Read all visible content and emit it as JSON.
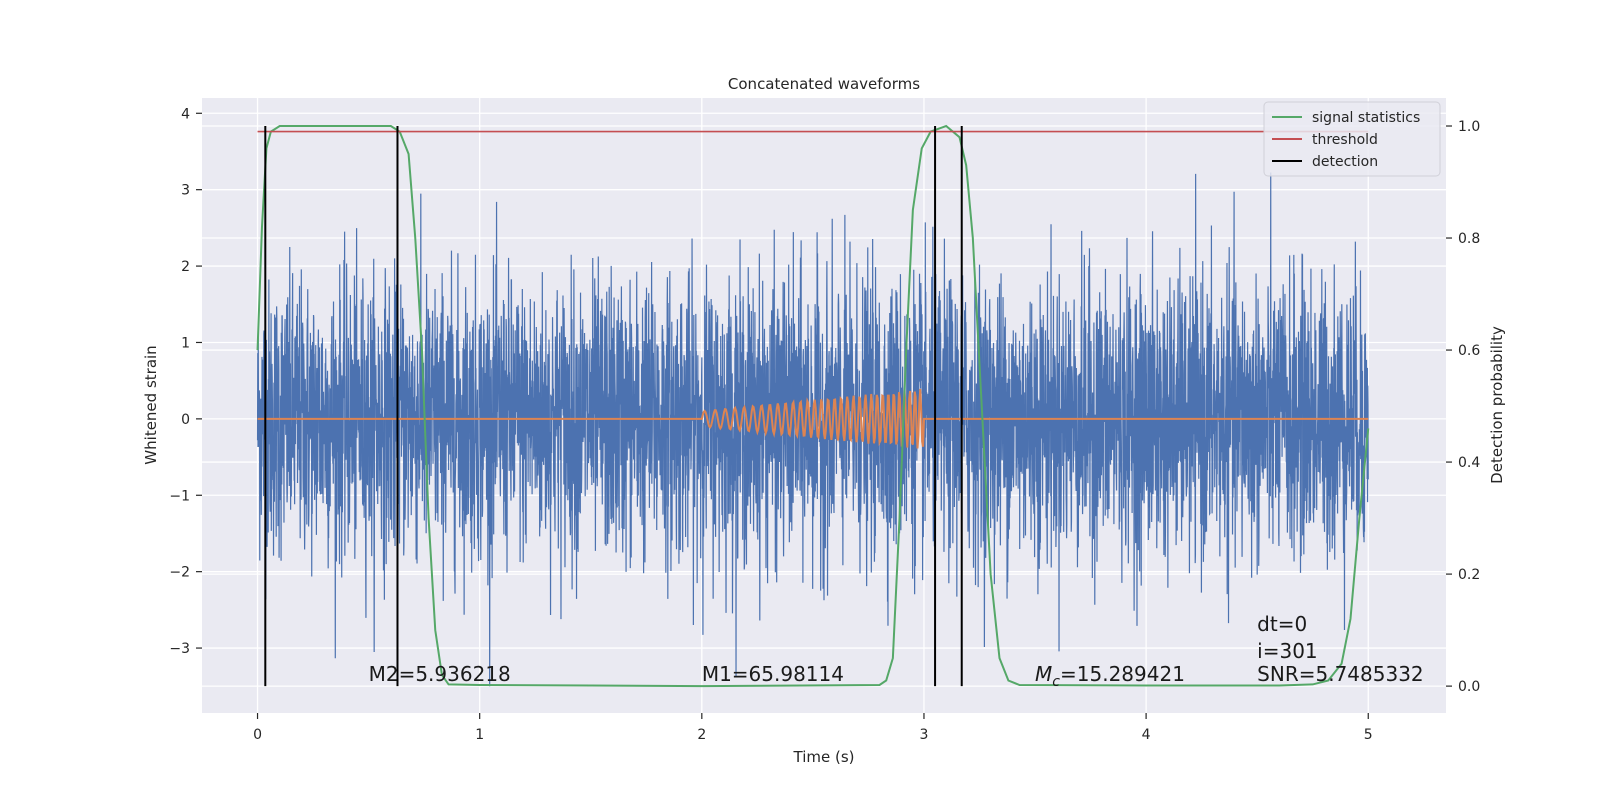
{
  "chart_data": {
    "type": "line",
    "title": "Concatenated waveforms",
    "xlabel": "Time (s)",
    "ylabel": "Whitened strain",
    "y2label": "Detection probability",
    "xlim": [
      -0.25,
      5.35
    ],
    "ylim": [
      -3.85,
      4.2
    ],
    "y2lim": [
      -0.048,
      1.05
    ],
    "xticks": [
      0,
      1,
      2,
      3,
      4,
      5
    ],
    "xtick_labels": [
      "0",
      "1",
      "2",
      "3",
      "4",
      "5"
    ],
    "yticks": [
      -3,
      -2,
      -1,
      0,
      1,
      2,
      3,
      4
    ],
    "ytick_labels": [
      "−3",
      "−2",
      "−1",
      "0",
      "1",
      "2",
      "3",
      "4"
    ],
    "y2ticks": [
      0.0,
      0.2,
      0.4,
      0.6,
      0.8,
      1.0
    ],
    "y2tick_labels": [
      "0.0",
      "0.2",
      "0.4",
      "0.6",
      "0.8",
      "1.0"
    ],
    "grid": true,
    "legend_placement": "top-right",
    "colors": {
      "plot_bg": "#eaeaf2",
      "grid": "#ffffff",
      "noise": "#4c72b0",
      "waveform": "#dd8452",
      "signal_statistics": "#55a868",
      "threshold": "#c44e52",
      "detection": "#000000"
    },
    "series": [
      {
        "name": "",
        "kind": "whitened strain noise",
        "x_range": [
          0,
          5
        ],
        "approx_std": 0.9,
        "approx_peak_range": [
          -3.5,
          3.85
        ]
      },
      {
        "name": "",
        "kind": "injected chirp waveform",
        "x_range": [
          2.0,
          3.0
        ],
        "amplitude_range": [
          0.1,
          0.4
        ]
      },
      {
        "name": "signal statistics",
        "axis": "right",
        "points": [
          [
            0,
            0.6
          ],
          [
            0.02,
            0.82
          ],
          [
            0.04,
            0.96
          ],
          [
            0.06,
            0.99
          ],
          [
            0.1,
            1.0
          ],
          [
            0.6,
            1.0
          ],
          [
            0.64,
            0.99
          ],
          [
            0.68,
            0.95
          ],
          [
            0.71,
            0.8
          ],
          [
            0.74,
            0.6
          ],
          [
            0.77,
            0.3
          ],
          [
            0.8,
            0.1
          ],
          [
            0.83,
            0.02
          ],
          [
            0.86,
            0.003
          ],
          [
            1.0,
            0.002
          ],
          [
            1.5,
            0.001
          ],
          [
            2.0,
            0.0
          ],
          [
            2.8,
            0.002
          ],
          [
            2.83,
            0.01
          ],
          [
            2.86,
            0.05
          ],
          [
            2.89,
            0.3
          ],
          [
            2.92,
            0.6
          ],
          [
            2.95,
            0.85
          ],
          [
            2.99,
            0.96
          ],
          [
            3.03,
            0.99
          ],
          [
            3.1,
            1.0
          ],
          [
            3.16,
            0.98
          ],
          [
            3.19,
            0.93
          ],
          [
            3.22,
            0.8
          ],
          [
            3.26,
            0.5
          ],
          [
            3.3,
            0.2
          ],
          [
            3.34,
            0.05
          ],
          [
            3.38,
            0.01
          ],
          [
            3.43,
            0.002
          ],
          [
            4.0,
            0.001
          ],
          [
            4.6,
            0.001
          ],
          [
            4.75,
            0.003
          ],
          [
            4.82,
            0.01
          ],
          [
            4.88,
            0.04
          ],
          [
            4.92,
            0.12
          ],
          [
            4.96,
            0.3
          ],
          [
            5.0,
            0.46
          ]
        ]
      },
      {
        "name": "threshold",
        "axis": "right",
        "x": [
          0,
          5
        ],
        "values": [
          0.99,
          0.99
        ]
      },
      {
        "name": "detection",
        "kind": "vertical lines",
        "x": [
          0.035,
          0.63,
          3.05,
          3.17
        ]
      }
    ],
    "annotations": [
      {
        "text": "M2=5.936218",
        "x": 0.5,
        "y": -3.35
      },
      {
        "text": "M1=65.98114",
        "x": 2.0,
        "y": -3.35
      },
      {
        "text_prefix": "M",
        "text_sub": "c",
        "text_rest": "=15.289421",
        "x": 3.5,
        "y": -3.35
      },
      {
        "text": "dt=0",
        "x": 4.5,
        "y": -2.7
      },
      {
        "text": "i=301",
        "x": 4.5,
        "y": -3.05
      },
      {
        "text": "SNR=5.7485332",
        "x": 4.5,
        "y": -3.35
      }
    ],
    "legend": [
      "signal statistics",
      "threshold",
      "detection"
    ]
  }
}
